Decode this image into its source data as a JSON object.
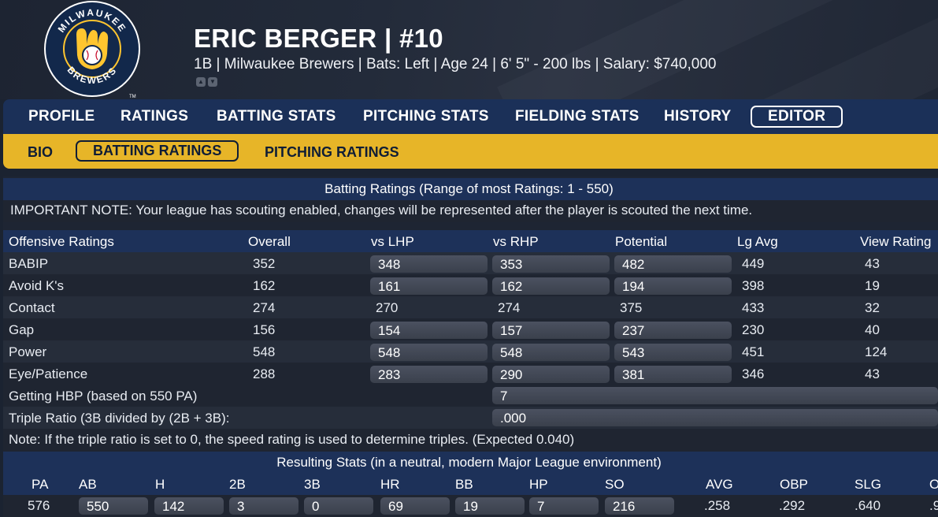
{
  "player": {
    "name": "ERIC BERGER",
    "number": "#10",
    "name_line": "ERIC BERGER  |  #10",
    "info": "1B | Milwaukee Brewers  |  Bats: Left  |  Age 24  |  6' 5\" - 200 lbs  |  Salary: $740,000"
  },
  "logo": {
    "top_text": "MILWAUKEE",
    "bottom_text": "BREWERS",
    "tm": "TM",
    "icon": "brewers-ball-glove-logo"
  },
  "colors": {
    "nav_bg": "#1b3058",
    "subnav_bg": "#e7b528",
    "accent_gold": "#e7b528"
  },
  "nav": {
    "tabs": [
      "PROFILE",
      "RATINGS",
      "BATTING STATS",
      "PITCHING STATS",
      "FIELDING STATS",
      "HISTORY",
      "EDITOR"
    ],
    "active": "EDITOR"
  },
  "subnav": {
    "tabs": [
      "BIO",
      "BATTING RATINGS",
      "PITCHING RATINGS"
    ],
    "active": "BATTING RATINGS"
  },
  "ratings": {
    "title": "Batting Ratings (Range of most Ratings: 1 - 550)",
    "note": "IMPORTANT NOTE: Your league has scouting enabled, changes will be represented after the player is scouted the next time.",
    "columns": [
      "Offensive Ratings",
      "Overall",
      "vs LHP",
      "vs RHP",
      "Potential",
      "Lg Avg",
      "View Rating"
    ],
    "rows": [
      {
        "name": "BABIP",
        "overall": "352",
        "lhp": "348",
        "rhp": "353",
        "pot": "482",
        "lg": "449",
        "view": "43",
        "editable": true
      },
      {
        "name": "Avoid K's",
        "overall": "162",
        "lhp": "161",
        "rhp": "162",
        "pot": "194",
        "lg": "398",
        "view": "19",
        "editable": true
      },
      {
        "name": "Contact",
        "overall": "274",
        "lhp": "270",
        "rhp": "274",
        "pot": "375",
        "lg": "433",
        "view": "32",
        "editable": false
      },
      {
        "name": "Gap",
        "overall": "156",
        "lhp": "154",
        "rhp": "157",
        "pot": "237",
        "lg": "230",
        "view": "40",
        "editable": true
      },
      {
        "name": "Power",
        "overall": "548",
        "lhp": "548",
        "rhp": "548",
        "pot": "543",
        "lg": "451",
        "view": "124",
        "editable": true
      },
      {
        "name": "Eye/Patience",
        "overall": "288",
        "lhp": "283",
        "rhp": "290",
        "pot": "381",
        "lg": "346",
        "view": "43",
        "editable": true
      }
    ],
    "hbp_label": "Getting HBP (based on 550 PA)",
    "hbp_value": "7",
    "triple_label": "Triple Ratio (3B divided by (2B + 3B):",
    "triple_value": ".000",
    "triple_note": "Note: If the triple ratio is set to 0, the speed rating is used to determine triples. (Expected 0.040)"
  },
  "stats": {
    "title": "Resulting Stats (in a neutral, modern Major League environment)",
    "columns": [
      "PA",
      "AB",
      "H",
      "2B",
      "3B",
      "HR",
      "BB",
      "HP",
      "SO",
      "AVG",
      "OBP",
      "SLG",
      "O"
    ],
    "values": [
      "576",
      "550",
      "142",
      "3",
      "0",
      "69",
      "19",
      "7",
      "216",
      ".258",
      ".292",
      ".640",
      ".9"
    ]
  }
}
